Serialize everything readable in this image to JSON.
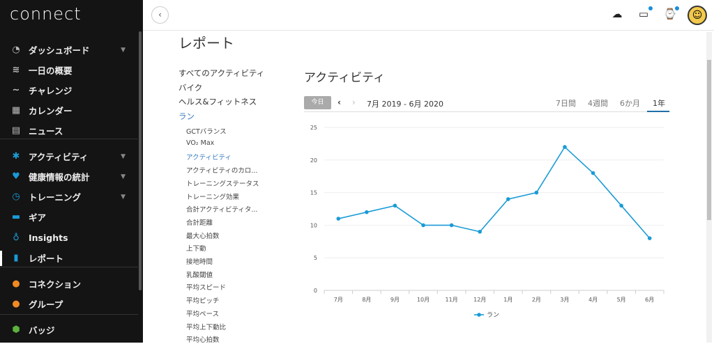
{
  "sidebar": {
    "logo": "connect",
    "items": [
      {
        "label": "ダッシュボード",
        "icon": "gauge-icon",
        "chev": true
      },
      {
        "label": "一日の概要",
        "icon": "layers-icon"
      },
      {
        "label": "チャレンジ",
        "icon": "trend-icon"
      },
      {
        "label": "カレンダー",
        "icon": "calendar-icon"
      },
      {
        "label": "ニュース",
        "icon": "news-icon"
      },
      {
        "label": "アクティビティ",
        "icon": "person-icon",
        "chev": true
      },
      {
        "label": "健康情報の統計",
        "icon": "heart-icon",
        "chev": true
      },
      {
        "label": "トレーニング",
        "icon": "stopwatch-icon",
        "chev": true
      },
      {
        "label": "ギア",
        "icon": "shoe-icon"
      },
      {
        "label": "Insights",
        "icon": "bulb-icon"
      },
      {
        "label": "レポート",
        "icon": "bar-chart-icon"
      },
      {
        "label": "コネクション",
        "icon": "connections-icon"
      },
      {
        "label": "グループ",
        "icon": "groups-icon"
      },
      {
        "label": "バッジ",
        "icon": "badge-icon"
      }
    ]
  },
  "page": {
    "title": "レポート"
  },
  "reports": {
    "categories": [
      "すべてのアクティビティ",
      "バイク",
      "ヘルス&フィットネス",
      "ラン"
    ],
    "run_items": [
      "GCTバランス",
      "VO₂ Max",
      "アクティビティ",
      "アクティビティのカロ...",
      "トレーニングステータス",
      "トレーニング効果",
      "合計アクティビティタ...",
      "合計距離",
      "最大心拍数",
      "上下動",
      "接地時間",
      "乳酸閾値",
      "平均スピード",
      "平均ピッチ",
      "平均ペース",
      "平均上下動比",
      "平均心拍数"
    ]
  },
  "panel": {
    "title": "アクティビティ",
    "today": "今日",
    "range": "7月 2019 - 6月 2020",
    "ranges": [
      "7日間",
      "4週間",
      "6か月",
      "1年"
    ],
    "active_range": "1年"
  },
  "colors": {
    "series": "#1a9bd7",
    "accent": "#1f6fa8"
  },
  "chart_data": {
    "type": "line",
    "categories": [
      "7月",
      "8月",
      "9月",
      "10月",
      "11月",
      "12月",
      "1月",
      "2月",
      "3月",
      "4月",
      "5月",
      "6月"
    ],
    "series": [
      {
        "name": "ラン",
        "values": [
          11,
          12,
          13,
          10,
          10,
          9,
          14,
          15,
          22,
          18,
          13,
          8
        ]
      }
    ],
    "yticks": [
      0,
      5,
      10,
      15,
      20,
      25
    ],
    "ylim": [
      0,
      25
    ],
    "legend": "bottom",
    "grid": true
  }
}
